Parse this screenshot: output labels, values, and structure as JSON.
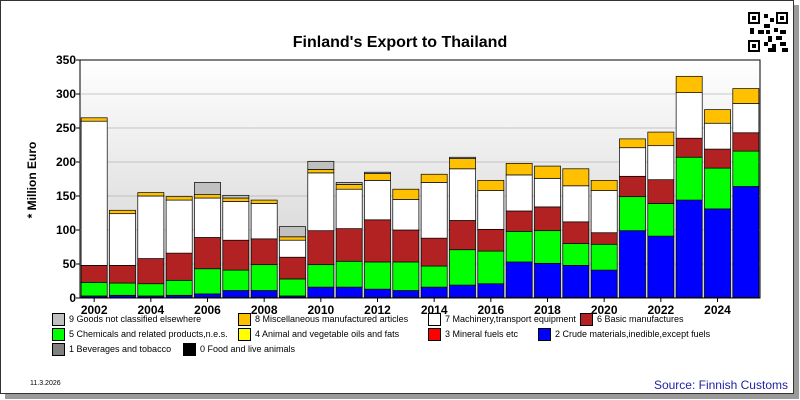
{
  "chart_data": {
    "type": "bar",
    "stacked": true,
    "title": "Finland's Export to Thailand",
    "ylabel": "* Million Euro",
    "xlabel": "",
    "ylim": [
      0,
      350
    ],
    "yticks": [
      0,
      50,
      100,
      150,
      200,
      250,
      300,
      350
    ],
    "xtick_labels": [
      "2002",
      "2004",
      "2006",
      "2008",
      "2010",
      "2012",
      "2014",
      "2016",
      "2018",
      "2020",
      "2022",
      "2024"
    ],
    "categories": [
      "2002",
      "2003",
      "2004",
      "2005",
      "2006",
      "2007",
      "2008",
      "2009",
      "2010",
      "2011",
      "2012",
      "2013",
      "2014",
      "2015",
      "2016",
      "2017",
      "2018",
      "2019",
      "2020",
      "2021",
      "2022",
      "2023",
      "2024",
      "2025"
    ],
    "grid": true,
    "legend_position": "bottom",
    "series": [
      {
        "name": "0 Food and live animals",
        "color": "#000000",
        "values": [
          1,
          1,
          1,
          1,
          1,
          1,
          1,
          1,
          1,
          1,
          1,
          1,
          1,
          1,
          1,
          1,
          1,
          1,
          1,
          1,
          1,
          1,
          1,
          1
        ]
      },
      {
        "name": "2 Crude materials,inedible,except fuels",
        "color": "#0000ff",
        "values": [
          2,
          3,
          2,
          3,
          5,
          10,
          10,
          2,
          15,
          15,
          12,
          10,
          15,
          18,
          20,
          52,
          50,
          47,
          40,
          98,
          90,
          143,
          130,
          163
        ]
      },
      {
        "name": "3 Mineral fuels etc",
        "color": "#ff0000",
        "values": [
          0,
          0,
          0,
          0,
          0,
          0,
          0,
          0,
          0,
          0,
          0,
          0,
          0,
          0,
          0,
          0,
          0,
          0,
          0,
          0,
          0,
          0,
          0,
          0
        ]
      },
      {
        "name": "4 Animal and vegetable oils and fats",
        "color": "#ffff00",
        "values": [
          0,
          0,
          0,
          0,
          0,
          0,
          0,
          0,
          0,
          0,
          0,
          0,
          0,
          0,
          0,
          0,
          0,
          0,
          0,
          0,
          0,
          0,
          0,
          0
        ]
      },
      {
        "name": "5 Chemicals and related products,n.e.s.",
        "color": "#00ff00",
        "values": [
          20,
          18,
          18,
          22,
          37,
          30,
          38,
          25,
          33,
          38,
          40,
          42,
          31,
          52,
          48,
          45,
          48,
          32,
          38,
          50,
          48,
          63,
          60,
          52
        ]
      },
      {
        "name": "6 Basic manufactures",
        "color": "#b22222",
        "values": [
          25,
          26,
          37,
          40,
          46,
          44,
          38,
          32,
          50,
          48,
          62,
          47,
          41,
          43,
          32,
          30,
          35,
          32,
          17,
          30,
          35,
          28,
          28,
          27
        ]
      },
      {
        "name": "7 Machinery,transport equipment",
        "color": "#ffffff",
        "values": [
          212,
          76,
          92,
          78,
          58,
          57,
          52,
          25,
          85,
          58,
          58,
          45,
          82,
          76,
          57,
          53,
          42,
          53,
          62,
          42,
          50,
          67,
          38,
          43
        ]
      },
      {
        "name": "8 Miscellaneous manufactured articles",
        "color": "#ffc000",
        "values": [
          5,
          5,
          5,
          5,
          5,
          5,
          5,
          5,
          5,
          7,
          10,
          15,
          12,
          15,
          15,
          17,
          18,
          25,
          15,
          13,
          20,
          24,
          20,
          22
        ]
      },
      {
        "name": "9 Goods not classified elsewhere",
        "color": "#c0c0c0",
        "values": [
          0,
          0,
          0,
          0,
          18,
          4,
          0,
          15,
          12,
          3,
          2,
          0,
          0,
          2,
          0,
          0,
          0,
          0,
          0,
          0,
          0,
          0,
          0,
          0
        ]
      },
      {
        "name": "1 Beverages and tobacco",
        "color": "#808080",
        "values": [
          0,
          0,
          0,
          0,
          0,
          0,
          0,
          0,
          0,
          0,
          0,
          0,
          0,
          0,
          0,
          0,
          0,
          0,
          0,
          0,
          0,
          0,
          0,
          0
        ]
      }
    ]
  },
  "legend_order": [
    8,
    7,
    6,
    5,
    4,
    3,
    2,
    1,
    9,
    0
  ],
  "date_stamp": "11.3.2026",
  "source": "Source: Finnish Customs",
  "qr_icon": "qr-code-icon"
}
